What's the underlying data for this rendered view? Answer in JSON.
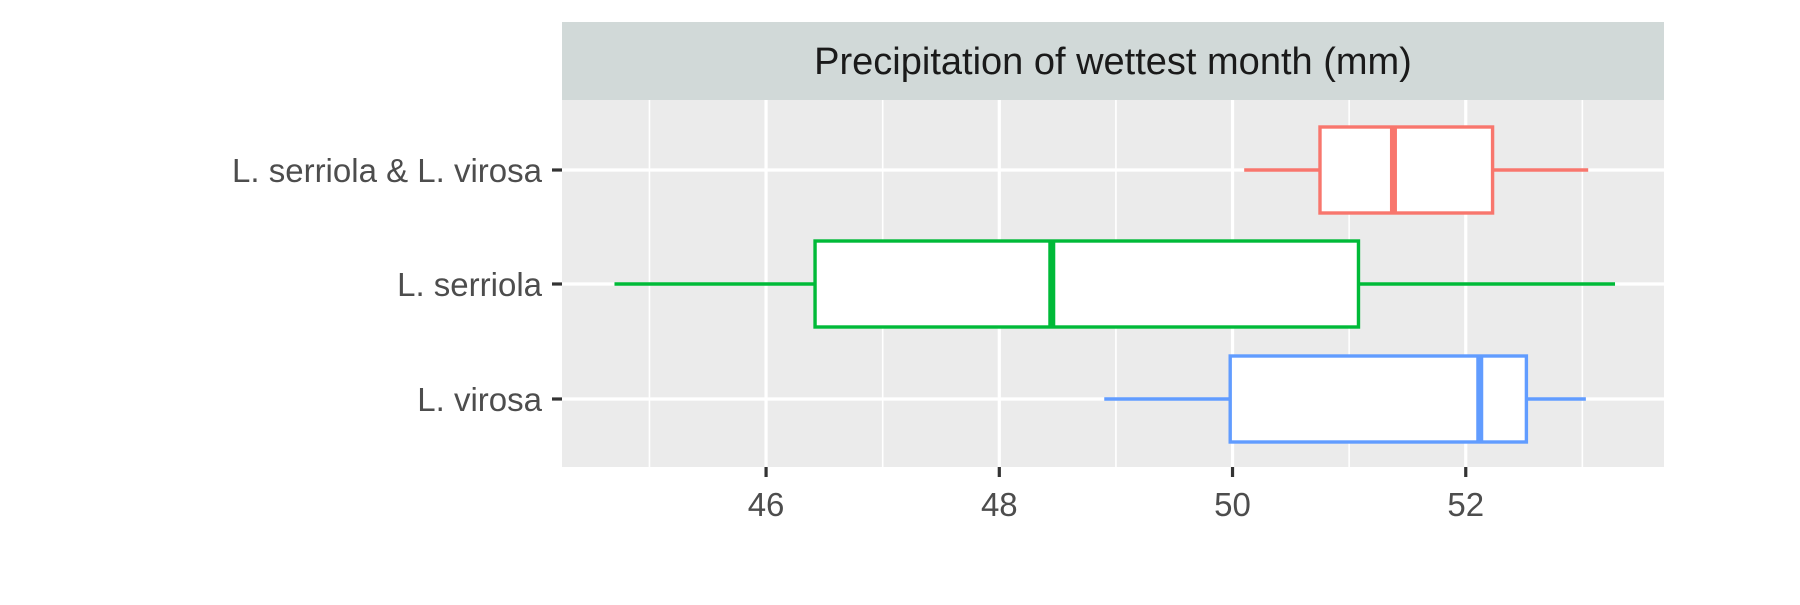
{
  "chart_data": {
    "type": "boxplot",
    "orientation": "horizontal",
    "facet_title": "Precipitation of wettest month (mm)",
    "xlabel": "",
    "ylabel": "",
    "xlim": [
      44.25,
      53.7
    ],
    "x_ticks": [
      46,
      48,
      50,
      52
    ],
    "x_minor_ticks": [
      45,
      47,
      49,
      51,
      53
    ],
    "grid": true,
    "legend": "none",
    "categories": [
      "L. serriola & L. virosa",
      "L. serriola",
      "L. virosa"
    ],
    "boxes": [
      {
        "category": "L. serriola & L. virosa",
        "whisker_low": 50.1,
        "q1": 50.75,
        "median": 51.38,
        "q3": 52.23,
        "whisker_high": 53.05,
        "color": "#F8766D"
      },
      {
        "category": "L. serriola",
        "whisker_low": 44.7,
        "q1": 46.42,
        "median": 48.45,
        "q3": 51.08,
        "whisker_high": 53.28,
        "color": "#00BA38"
      },
      {
        "category": "L. virosa",
        "whisker_low": 48.9,
        "q1": 49.98,
        "median": 52.12,
        "q3": 52.52,
        "whisker_high": 53.03,
        "color": "#619CFF"
      }
    ],
    "colors": {
      "panel_bg": "#EBEBEB",
      "strip_bg": "#D1D9D8",
      "grid": "#FFFFFF",
      "axis_text": "#4D4D4D",
      "tick": "#333333",
      "strip_text": "#1A1A1A"
    }
  }
}
